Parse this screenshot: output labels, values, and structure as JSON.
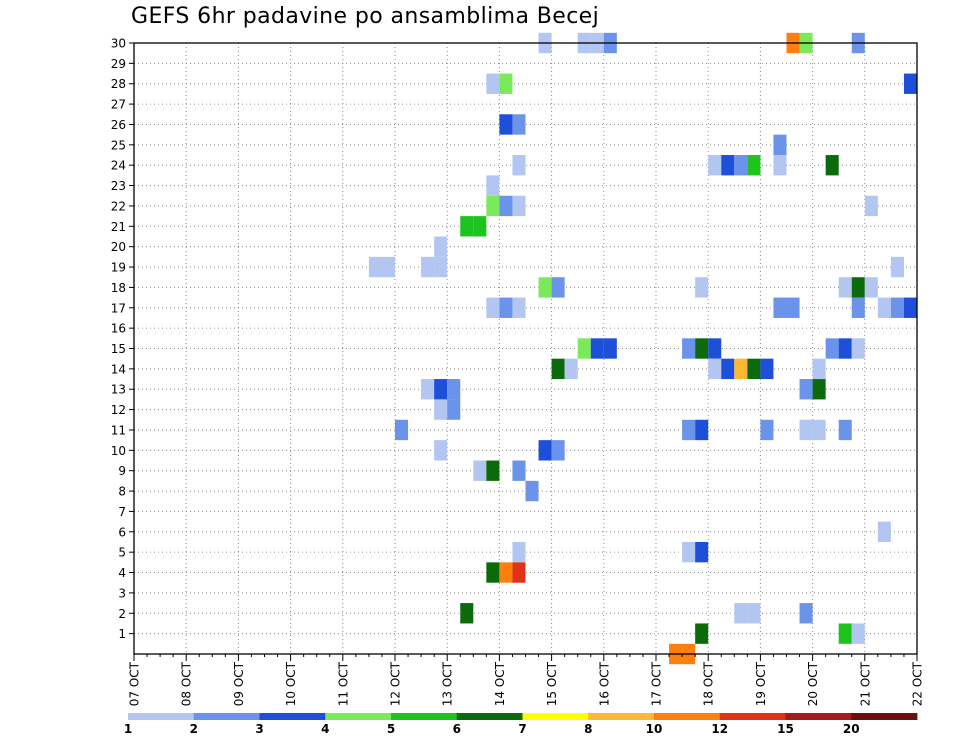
{
  "chart_data": {
    "type": "heatmap",
    "title": "GEFS 6hr padavine po ansamblima Becej",
    "xlabel": "",
    "ylabel": "",
    "x_ticks": [
      "07 OCT",
      "08 OCT",
      "09 OCT",
      "10 OCT",
      "11 OCT",
      "12 OCT",
      "13 OCT",
      "14 OCT",
      "15 OCT",
      "16 OCT",
      "17 OCT",
      "18 OCT",
      "19 OCT",
      "20 OCT",
      "21 OCT",
      "22 OCT"
    ],
    "xlim": [
      "07 OCT 00Z",
      "22 OCT 00Z"
    ],
    "x_step_hours": 6,
    "y_ticks": [
      1,
      2,
      3,
      4,
      5,
      6,
      7,
      8,
      9,
      10,
      11,
      12,
      13,
      14,
      15,
      16,
      17,
      18,
      19,
      20,
      21,
      22,
      23,
      24,
      25,
      26,
      27,
      28,
      29,
      30
    ],
    "ylim": [
      0,
      30
    ],
    "grid": true,
    "colorbar": {
      "labels": [
        "1",
        "2",
        "3",
        "4",
        "5",
        "6",
        "7",
        "8",
        "10",
        "12",
        "15",
        "20"
      ],
      "colors": [
        "#b3c6f2",
        "#6b93ea",
        "#1d4fd8",
        "#7bea5a",
        "#1ec41e",
        "#0b6b0b",
        "#ffff00",
        "#ffb833",
        "#ff7f0e",
        "#e03218",
        "#a51c1c",
        "#6b0f0f"
      ]
    },
    "cells": [
      {
        "member": 30,
        "time": "14 OCT 18Z",
        "level": 1
      },
      {
        "member": 30,
        "time": "15 OCT 12Z",
        "level": 1
      },
      {
        "member": 30,
        "time": "15 OCT 18Z",
        "level": 1
      },
      {
        "member": 30,
        "time": "16 OCT 00Z",
        "level": 2
      },
      {
        "member": 30,
        "time": "19 OCT 12Z",
        "level": 9
      },
      {
        "member": 30,
        "time": "19 OCT 18Z",
        "level": 4
      },
      {
        "member": 30,
        "time": "20 OCT 18Z",
        "level": 2
      },
      {
        "member": 28,
        "time": "13 OCT 18Z",
        "level": 1
      },
      {
        "member": 28,
        "time": "14 OCT 00Z",
        "level": 4
      },
      {
        "member": 28,
        "time": "21 OCT 18Z",
        "level": 3
      },
      {
        "member": 26,
        "time": "14 OCT 00Z",
        "level": 3
      },
      {
        "member": 26,
        "time": "14 OCT 06Z",
        "level": 2
      },
      {
        "member": 25,
        "time": "19 OCT 06Z",
        "level": 2
      },
      {
        "member": 24,
        "time": "14 OCT 06Z",
        "level": 1
      },
      {
        "member": 24,
        "time": "18 OCT 00Z",
        "level": 1
      },
      {
        "member": 24,
        "time": "18 OCT 06Z",
        "level": 3
      },
      {
        "member": 24,
        "time": "18 OCT 12Z",
        "level": 2
      },
      {
        "member": 24,
        "time": "18 OCT 18Z",
        "level": 5
      },
      {
        "member": 24,
        "time": "19 OCT 06Z",
        "level": 1
      },
      {
        "member": 24,
        "time": "20 OCT 06Z",
        "level": 6
      },
      {
        "member": 23,
        "time": "13 OCT 18Z",
        "level": 1
      },
      {
        "member": 22,
        "time": "13 OCT 18Z",
        "level": 4
      },
      {
        "member": 22,
        "time": "14 OCT 00Z",
        "level": 2
      },
      {
        "member": 22,
        "time": "14 OCT 06Z",
        "level": 1
      },
      {
        "member": 22,
        "time": "21 OCT 00Z",
        "level": 1
      },
      {
        "member": 21,
        "time": "13 OCT 06Z",
        "level": 5
      },
      {
        "member": 21,
        "time": "13 OCT 12Z",
        "level": 5
      },
      {
        "member": 20,
        "time": "12 OCT 18Z",
        "level": 1
      },
      {
        "member": 19,
        "time": "11 OCT 12Z",
        "level": 1
      },
      {
        "member": 19,
        "time": "11 OCT 18Z",
        "level": 1
      },
      {
        "member": 19,
        "time": "12 OCT 12Z",
        "level": 1
      },
      {
        "member": 19,
        "time": "12 OCT 18Z",
        "level": 1
      },
      {
        "member": 19,
        "time": "21 OCT 12Z",
        "level": 1
      },
      {
        "member": 18,
        "time": "14 OCT 18Z",
        "level": 4
      },
      {
        "member": 18,
        "time": "15 OCT 00Z",
        "level": 2
      },
      {
        "member": 18,
        "time": "17 OCT 18Z",
        "level": 1
      },
      {
        "member": 18,
        "time": "20 OCT 12Z",
        "level": 1
      },
      {
        "member": 18,
        "time": "20 OCT 18Z",
        "level": 6
      },
      {
        "member": 18,
        "time": "21 OCT 00Z",
        "level": 1
      },
      {
        "member": 17,
        "time": "13 OCT 18Z",
        "level": 1
      },
      {
        "member": 17,
        "time": "14 OCT 00Z",
        "level": 2
      },
      {
        "member": 17,
        "time": "14 OCT 06Z",
        "level": 1
      },
      {
        "member": 17,
        "time": "19 OCT 06Z",
        "level": 2
      },
      {
        "member": 17,
        "time": "19 OCT 12Z",
        "level": 2
      },
      {
        "member": 17,
        "time": "20 OCT 18Z",
        "level": 2
      },
      {
        "member": 17,
        "time": "21 OCT 06Z",
        "level": 1
      },
      {
        "member": 17,
        "time": "21 OCT 12Z",
        "level": 2
      },
      {
        "member": 17,
        "time": "21 OCT 18Z",
        "level": 3
      },
      {
        "member": 15,
        "time": "15 OCT 12Z",
        "level": 4
      },
      {
        "member": 15,
        "time": "15 OCT 18Z",
        "level": 3
      },
      {
        "member": 15,
        "time": "16 OCT 00Z",
        "level": 3
      },
      {
        "member": 15,
        "time": "17 OCT 12Z",
        "level": 2
      },
      {
        "member": 15,
        "time": "17 OCT 18Z",
        "level": 6
      },
      {
        "member": 15,
        "time": "18 OCT 00Z",
        "level": 3
      },
      {
        "member": 15,
        "time": "20 OCT 06Z",
        "level": 2
      },
      {
        "member": 15,
        "time": "20 OCT 12Z",
        "level": 3
      },
      {
        "member": 15,
        "time": "20 OCT 18Z",
        "level": 1
      },
      {
        "member": 14,
        "time": "15 OCT 00Z",
        "level": 6
      },
      {
        "member": 14,
        "time": "15 OCT 06Z",
        "level": 1
      },
      {
        "member": 14,
        "time": "18 OCT 00Z",
        "level": 1
      },
      {
        "member": 14,
        "time": "18 OCT 06Z",
        "level": 3
      },
      {
        "member": 14,
        "time": "18 OCT 12Z",
        "level": 8
      },
      {
        "member": 14,
        "time": "18 OCT 18Z",
        "level": 6
      },
      {
        "member": 14,
        "time": "19 OCT 00Z",
        "level": 3
      },
      {
        "member": 14,
        "time": "20 OCT 00Z",
        "level": 1
      },
      {
        "member": 13,
        "time": "12 OCT 12Z",
        "level": 1
      },
      {
        "member": 13,
        "time": "12 OCT 18Z",
        "level": 3
      },
      {
        "member": 13,
        "time": "13 OCT 00Z",
        "level": 2
      },
      {
        "member": 13,
        "time": "19 OCT 18Z",
        "level": 2
      },
      {
        "member": 13,
        "time": "20 OCT 00Z",
        "level": 6
      },
      {
        "member": 12,
        "time": "12 OCT 18Z",
        "level": 1
      },
      {
        "member": 12,
        "time": "13 OCT 00Z",
        "level": 2
      },
      {
        "member": 11,
        "time": "12 OCT 00Z",
        "level": 2
      },
      {
        "member": 11,
        "time": "17 OCT 12Z",
        "level": 2
      },
      {
        "member": 11,
        "time": "17 OCT 18Z",
        "level": 3
      },
      {
        "member": 11,
        "time": "19 OCT 00Z",
        "level": 2
      },
      {
        "member": 11,
        "time": "19 OCT 18Z",
        "level": 1
      },
      {
        "member": 11,
        "time": "20 OCT 00Z",
        "level": 1
      },
      {
        "member": 11,
        "time": "20 OCT 12Z",
        "level": 2
      },
      {
        "member": 10,
        "time": "12 OCT 18Z",
        "level": 1
      },
      {
        "member": 10,
        "time": "14 OCT 18Z",
        "level": 3
      },
      {
        "member": 10,
        "time": "15 OCT 00Z",
        "level": 2
      },
      {
        "member": 9,
        "time": "13 OCT 12Z",
        "level": 1
      },
      {
        "member": 9,
        "time": "13 OCT 18Z",
        "level": 6
      },
      {
        "member": 9,
        "time": "14 OCT 06Z",
        "level": 2
      },
      {
        "member": 8,
        "time": "14 OCT 12Z",
        "level": 2
      },
      {
        "member": 6,
        "time": "21 OCT 06Z",
        "level": 1
      },
      {
        "member": 5,
        "time": "14 OCT 06Z",
        "level": 1
      },
      {
        "member": 5,
        "time": "17 OCT 12Z",
        "level": 1
      },
      {
        "member": 5,
        "time": "17 OCT 18Z",
        "level": 3
      },
      {
        "member": 4,
        "time": "13 OCT 18Z",
        "level": 6
      },
      {
        "member": 4,
        "time": "14 OCT 00Z",
        "level": 9
      },
      {
        "member": 4,
        "time": "14 OCT 06Z",
        "level": 10
      },
      {
        "member": 2,
        "time": "13 OCT 06Z",
        "level": 6
      },
      {
        "member": 2,
        "time": "18 OCT 12Z",
        "level": 1
      },
      {
        "member": 2,
        "time": "18 OCT 18Z",
        "level": 1
      },
      {
        "member": 2,
        "time": "19 OCT 18Z",
        "level": 2
      },
      {
        "member": 1,
        "time": "17 OCT 18Z",
        "level": 6
      },
      {
        "member": 1,
        "time": "20 OCT 12Z",
        "level": 5
      },
      {
        "member": 1,
        "time": "20 OCT 18Z",
        "level": 1
      },
      {
        "member": 0,
        "time": "17 OCT 06Z",
        "level": 9
      },
      {
        "member": 0,
        "time": "17 OCT 12Z",
        "level": 9
      }
    ]
  }
}
